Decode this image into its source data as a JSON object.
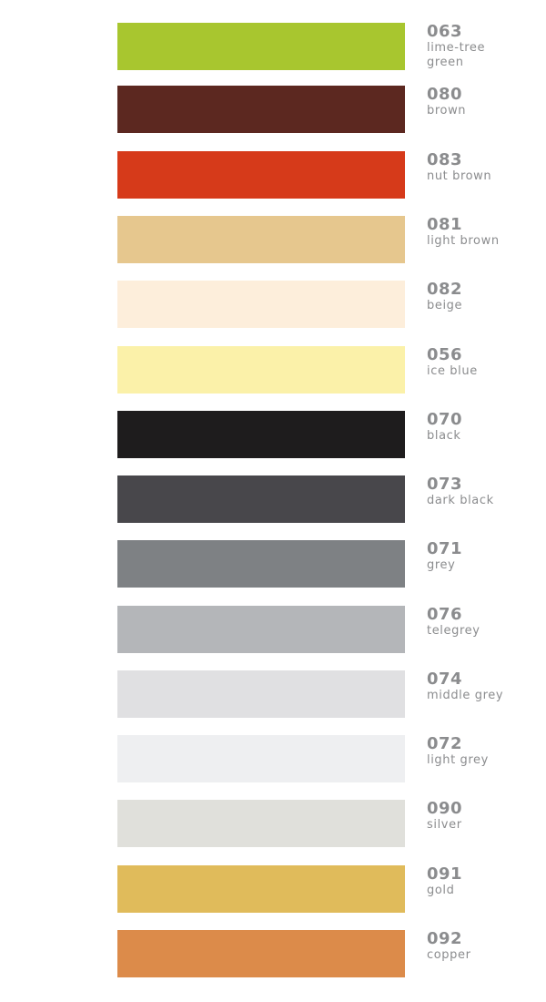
{
  "swatches": [
    {
      "code": "063",
      "name": "lime-tree\ngreen",
      "color": "#a8c62f"
    },
    {
      "code": "080",
      "name": "brown",
      "color": "#5c2820"
    },
    {
      "code": "083",
      "name": "nut brown",
      "color": "#d63a1a"
    },
    {
      "code": "081",
      "name": "light brown",
      "color": "#e6c78e"
    },
    {
      "code": "082",
      "name": "beige",
      "color": "#fdeedb"
    },
    {
      "code": "056",
      "name": "ice blue",
      "color": "#fbf1a9"
    },
    {
      "code": "070",
      "name": "black",
      "color": "#1e1c1d"
    },
    {
      "code": "073",
      "name": "dark black",
      "color": "#48474b"
    },
    {
      "code": "071",
      "name": "grey",
      "color": "#7e8184"
    },
    {
      "code": "076",
      "name": "telegrey",
      "color": "#b4b6b9"
    },
    {
      "code": "074",
      "name": "middle grey",
      "color": "#e0e0e2"
    },
    {
      "code": "072",
      "name": "light grey",
      "color": "#eeeff1"
    },
    {
      "code": "090",
      "name": "silver",
      "color": "#e0e0db"
    },
    {
      "code": "091",
      "name": "gold",
      "color": "#e0bb5b"
    },
    {
      "code": "092",
      "name": "copper",
      "color": "#dc8b4a"
    }
  ]
}
